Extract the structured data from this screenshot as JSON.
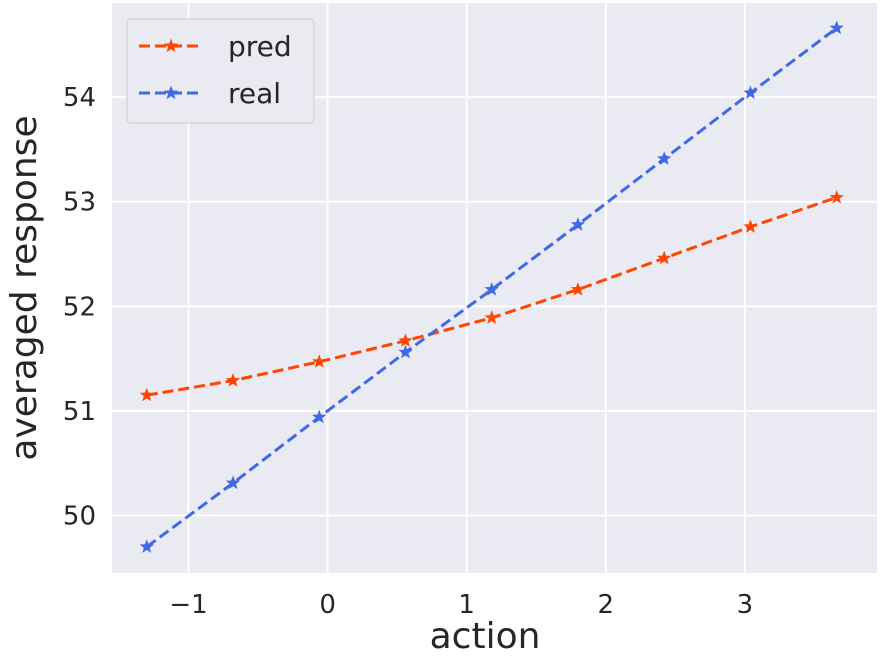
{
  "chart_data": {
    "type": "line",
    "xlabel": "action",
    "ylabel": "averaged response",
    "xlim": [
      -1.55,
      3.95
    ],
    "ylim": [
      49.45,
      54.9
    ],
    "xticks": [
      -1,
      0,
      1,
      2,
      3
    ],
    "xtick_labels": [
      "−1",
      "0",
      "1",
      "2",
      "3"
    ],
    "yticks": [
      50,
      51,
      52,
      53,
      54
    ],
    "ytick_labels": [
      "50",
      "51",
      "52",
      "53",
      "54"
    ],
    "grid": true,
    "legend_position": "top-left",
    "x": [
      -1.3,
      -0.68,
      -0.06,
      0.56,
      1.18,
      1.8,
      2.42,
      3.04,
      3.66
    ],
    "series": [
      {
        "name": "pred",
        "color": "#ff4500",
        "linestyle": "dashed",
        "marker": "star",
        "values": [
          51.15,
          51.29,
          51.47,
          51.67,
          51.89,
          52.16,
          52.46,
          52.76,
          53.04
        ]
      },
      {
        "name": "real",
        "color": "#4169e1",
        "linestyle": "dashed",
        "marker": "star",
        "values": [
          49.7,
          50.31,
          50.94,
          51.56,
          52.16,
          52.78,
          53.41,
          54.04,
          54.66
        ]
      }
    ]
  }
}
